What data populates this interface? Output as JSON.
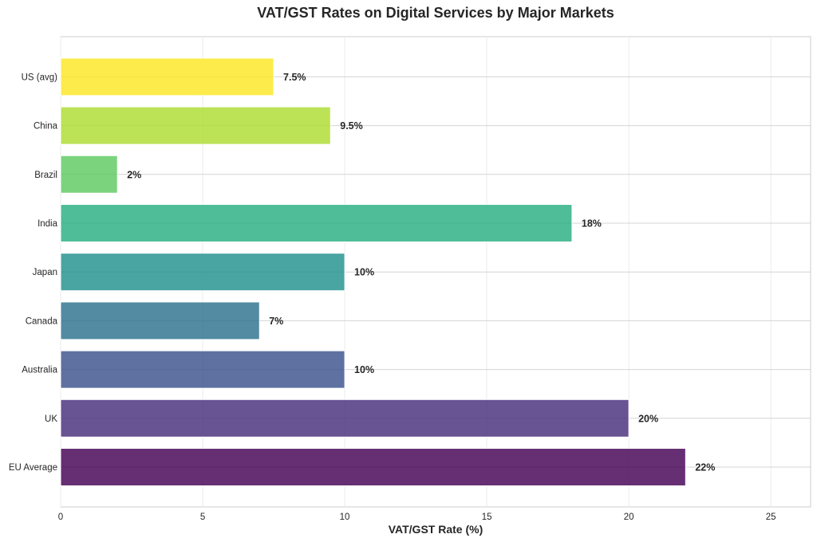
{
  "chart_data": {
    "type": "bar",
    "orientation": "horizontal",
    "title": "VAT/GST Rates on Digital Services by Major Markets",
    "xlabel": "VAT/GST Rate (%)",
    "ylabel": "",
    "xlim": [
      0,
      26.4
    ],
    "xticks": [
      0,
      5,
      10,
      15,
      20,
      25
    ],
    "grid": true,
    "categories": [
      "EU Average",
      "UK",
      "Australia",
      "Canada",
      "Japan",
      "India",
      "Brazil",
      "China",
      "US (avg)"
    ],
    "values": [
      22,
      20,
      10,
      7,
      10,
      18,
      2,
      9.5,
      7.5
    ],
    "data_labels": [
      "22%",
      "20%",
      "10%",
      "7%",
      "10%",
      "18%",
      "2%",
      "9.5%",
      "7.5%"
    ],
    "colors": [
      "#440154",
      "#472d7b",
      "#3b528b",
      "#2c728e",
      "#21918c",
      "#28ae80",
      "#5ec962",
      "#addc30",
      "#fde725"
    ]
  }
}
